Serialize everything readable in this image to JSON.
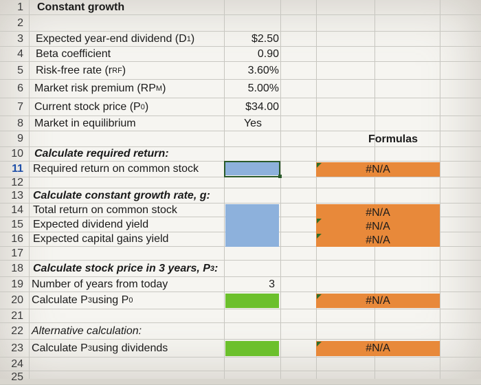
{
  "rows": [
    {
      "n": "1",
      "label": "Constant growth"
    },
    {
      "n": "2"
    },
    {
      "n": "3",
      "label": "Expected year-end dividend (D",
      "sub": "1",
      "tail": ")",
      "value": "$2.50"
    },
    {
      "n": "4",
      "label": "Beta coefficient",
      "value": "0.90"
    },
    {
      "n": "5",
      "label": "Risk-free rate (r",
      "sub": "RF",
      "tail": ")",
      "value": "3.60%"
    },
    {
      "n": "6",
      "label": "Market risk premium (RP",
      "sub": "M",
      "tail": ")",
      "value": "5.00%"
    },
    {
      "n": "7",
      "label": "Current stock price (P",
      "sub": "0",
      "tail": ")",
      "value": "$34.00"
    },
    {
      "n": "8",
      "label": "Market in equilibrium",
      "value": "Yes"
    },
    {
      "n": "9",
      "formulas": "Formulas"
    },
    {
      "n": "10",
      "label": "Calculate required return:"
    },
    {
      "n": "11",
      "label": "Required return on common stock",
      "result": "#N/A"
    },
    {
      "n": "12"
    },
    {
      "n": "13",
      "label": "Calculate constant growth rate, g:"
    },
    {
      "n": "14",
      "label": "Total return on common stock",
      "result": "#N/A"
    },
    {
      "n": "15",
      "label": "Expected dividend yield",
      "result": "#N/A"
    },
    {
      "n": "16",
      "label": "Expected capital gains yield",
      "result": "#N/A"
    },
    {
      "n": "17"
    },
    {
      "n": "18",
      "label": "Calculate stock price in 3 years, P",
      "sub": "3",
      "tail": ":"
    },
    {
      "n": "19",
      "label": "Number of years from today",
      "value": "3"
    },
    {
      "n": "20",
      "label": "Calculate P",
      "sub": "3",
      "tail": " using P",
      "sub2": "0",
      "result": "#N/A"
    },
    {
      "n": "21"
    },
    {
      "n": "22",
      "label": "Alternative calculation:"
    },
    {
      "n": "23",
      "label": "Calculate P",
      "sub": "3",
      "tail": " using dividends",
      "result": "#N/A"
    },
    {
      "n": "24"
    },
    {
      "n": "25"
    }
  ],
  "colors": {
    "orange": "#e8893a",
    "blue": "#8db1dc",
    "green": "#6cc02c"
  }
}
